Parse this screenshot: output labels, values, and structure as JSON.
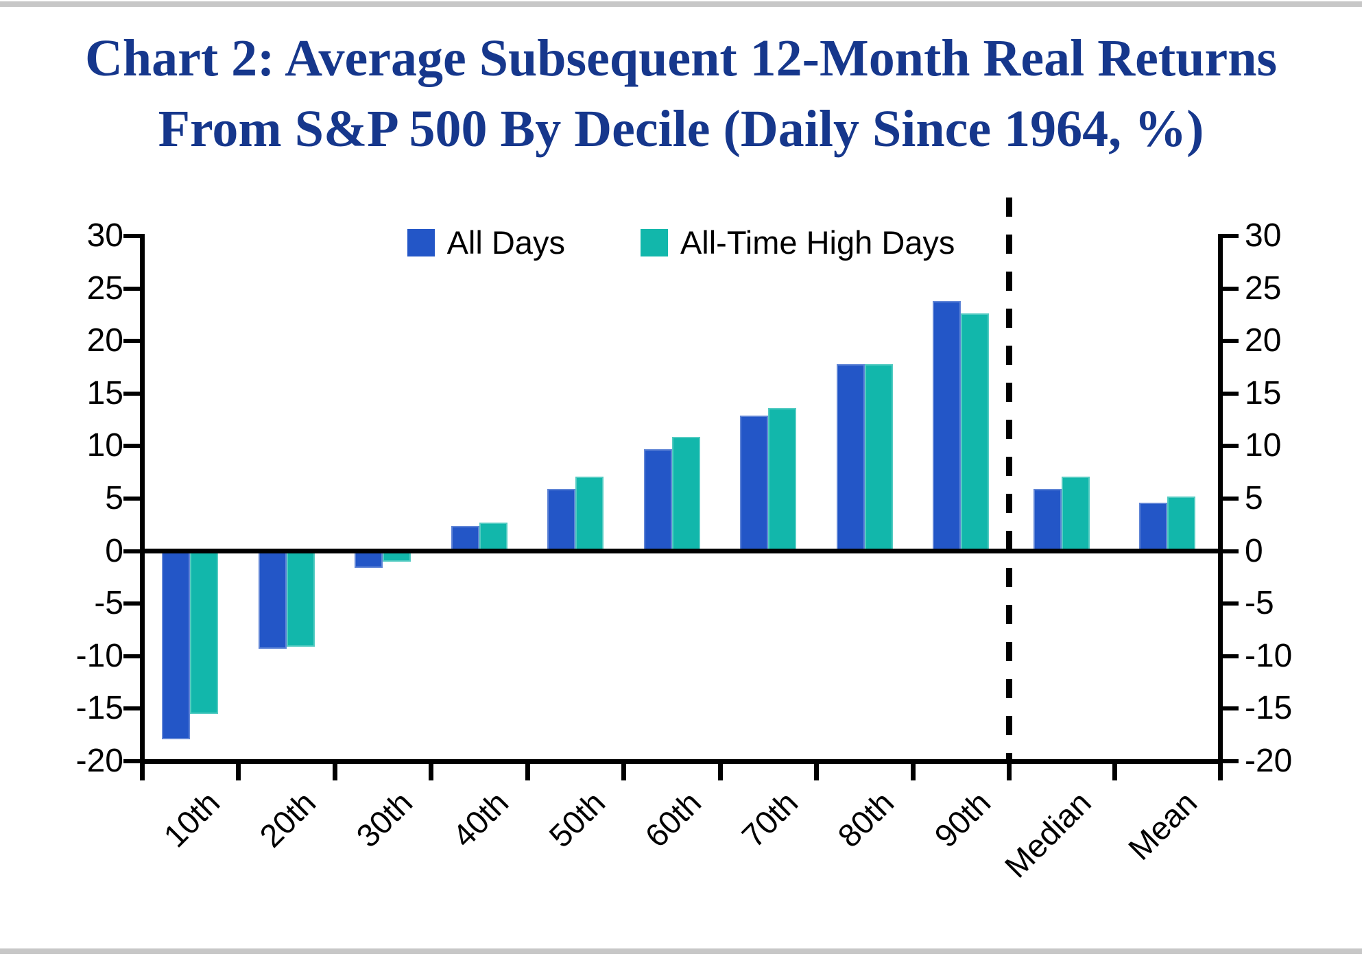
{
  "page": {
    "background": "#ffffff",
    "top_edge_strip_color": "#c7c7c7",
    "bottom_edge_strip_color": "#c7c7c7"
  },
  "title": {
    "line1": "Chart 2: Average Subsequent 12-Month Real Returns",
    "line2": "From S&P 500 By Decile (Daily Since 1964, %)",
    "color": "#16378C"
  },
  "chart_data": {
    "type": "bar",
    "title": "Chart 2: Average Subsequent 12-Month Real Returns From S&P 500 By Decile (Daily Since 1964, %)",
    "categories": [
      "10th",
      "20th",
      "30th",
      "40th",
      "50th",
      "60th",
      "70th",
      "80th",
      "90th",
      "Median",
      "Mean"
    ],
    "series": [
      {
        "name": "All Days",
        "color": "#2356C7",
        "values": [
          -17.9,
          -9.3,
          -1.6,
          2.4,
          5.9,
          9.7,
          12.9,
          17.8,
          23.8,
          5.9,
          4.6
        ]
      },
      {
        "name": "All-Time High Days",
        "color": "#12B7AB",
        "values": [
          -15.5,
          -9.1,
          -1.0,
          2.7,
          7.1,
          10.9,
          13.6,
          17.8,
          22.6,
          7.1,
          5.2
        ]
      }
    ],
    "xlabel": "",
    "ylabel": "",
    "ylim": [
      -20,
      30
    ],
    "ytick_step": 5,
    "yticks": [
      30,
      25,
      20,
      15,
      10,
      5,
      0,
      -5,
      -10,
      -15,
      -20
    ],
    "y_axis_sides": "left and right (mirrored labels)",
    "grid": false,
    "zero_baseline": true,
    "legend_position": "top-center-inside",
    "separator": {
      "style": "vertical-dashed-line",
      "after_category": "90th"
    },
    "x_label_rotation_deg": 45,
    "axis_color": "#000000"
  }
}
